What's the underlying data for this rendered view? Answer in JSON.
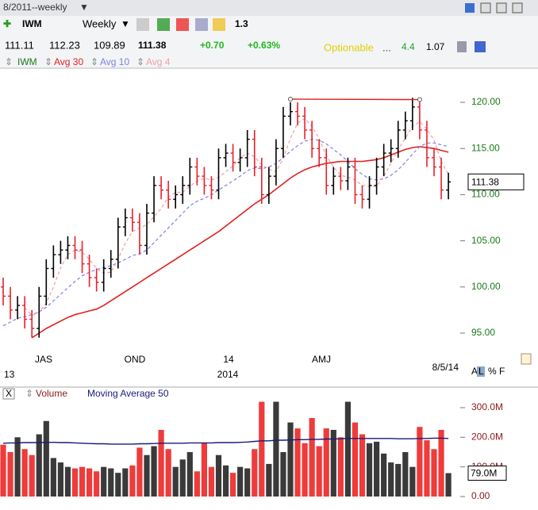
{
  "header": {
    "period": "8/2011--weekly",
    "symbol": "IWM",
    "interval": "Weekly",
    "setting": 1.3,
    "quote": {
      "open": 111.11,
      "high": 112.23,
      "low": 109.89,
      "last": 111.38,
      "change": "+0.70",
      "change_pct": "+0.63%",
      "optionable": "Optionable",
      "dots": "...",
      "iv": 4.4,
      "ratio": 1.07
    }
  },
  "chart_data": [
    {
      "type": "ohlc",
      "legend": [
        "IWM"
      ],
      "up_color": "#000000",
      "down_color": "#e8202a",
      "x_labels": [
        "JAS",
        "OND",
        "14",
        "AMJ"
      ],
      "year_labels": [
        "13",
        "2014"
      ],
      "date_label": "8/5/14",
      "ylim": [
        90.7,
        123.7
      ],
      "yticks": [
        {
          "value": 95,
          "label": "95.00"
        },
        {
          "value": 100,
          "label": "100.00"
        },
        {
          "value": 105,
          "label": "105.00"
        },
        {
          "value": 110,
          "label": "110.00"
        },
        {
          "value": 115,
          "label": "115.00"
        },
        {
          "value": 120,
          "label": "120.00"
        }
      ],
      "open": [
        100,
        99,
        97.5,
        98,
        96.5,
        95.5,
        99,
        102,
        103.5,
        104,
        104.5,
        104,
        102.5,
        101,
        100.5,
        102,
        103,
        106.5,
        107.5,
        107,
        104.5,
        108,
        111,
        110.5,
        109.5,
        110,
        111,
        113,
        112,
        111,
        110.5,
        114,
        114.5,
        113.5,
        114,
        116,
        113,
        110,
        112,
        115,
        118.5,
        119,
        118.5,
        117,
        115,
        114,
        111,
        112,
        111.5,
        113,
        110,
        109.5,
        111,
        113,
        114.5,
        115,
        117,
        118,
        119.5,
        117,
        114,
        113,
        110.5
      ],
      "high": [
        101,
        100,
        99,
        99,
        97.5,
        100,
        103,
        104.5,
        105,
        105.5,
        105.5,
        105,
        103.5,
        102,
        103,
        104,
        107.5,
        108.5,
        108.5,
        108,
        109,
        112,
        112,
        111.5,
        111,
        112,
        114,
        114,
        113,
        112,
        115,
        115.5,
        115.5,
        115,
        117,
        117,
        114,
        113,
        116,
        119.5,
        120,
        120,
        119.5,
        118,
        116,
        115,
        113,
        113,
        114,
        114,
        111,
        112,
        114,
        115.5,
        116,
        118,
        119,
        120.5,
        120.5,
        118,
        115,
        114,
        112.38
      ],
      "low": [
        98,
        96.5,
        96.5,
        95.5,
        94.5,
        94.5,
        98,
        101,
        102.5,
        103,
        103,
        101.5,
        100,
        99.5,
        99.5,
        101,
        102,
        105.5,
        106,
        103.5,
        103.5,
        107,
        109.5,
        108.5,
        108.5,
        109,
        110,
        111,
        110,
        109.5,
        109.5,
        113,
        112.5,
        112.5,
        113,
        112,
        109,
        109,
        111,
        114,
        117.5,
        117.5,
        116,
        114,
        113,
        110,
        110,
        110.5,
        110.5,
        109,
        108.5,
        108.5,
        110,
        112,
        113.5,
        114,
        116,
        117,
        116,
        113,
        112,
        109.5,
        109.5
      ],
      "close": [
        99,
        97.5,
        98,
        96.5,
        95.5,
        99,
        102,
        103.5,
        104,
        104.5,
        104,
        102.5,
        101,
        100.5,
        102,
        103,
        106.5,
        107.5,
        107,
        104.5,
        108,
        111,
        110.5,
        109.5,
        110,
        111,
        113,
        112,
        111,
        110.5,
        114,
        114.5,
        113.5,
        114,
        116,
        113,
        110,
        112,
        115,
        118.5,
        119,
        118.5,
        117,
        115,
        114,
        111,
        112,
        111.5,
        113,
        110,
        109.5,
        111,
        113,
        114.5,
        115,
        117,
        118,
        119.5,
        117,
        114,
        113,
        110.5,
        111.38
      ],
      "trendline": {
        "x": [
          40,
          58
        ],
        "y": [
          120.35,
          120.3
        ],
        "color": "#e02020"
      },
      "series": [
        {
          "name": "Avg 30",
          "color": "#e02020",
          "dash": false,
          "values": [
            null,
            null,
            null,
            null,
            94.5,
            95.0,
            95.5,
            95.9,
            96.3,
            96.7,
            97.0,
            97.2,
            97.4,
            97.6,
            98.0,
            98.5,
            99.0,
            99.5,
            100.0,
            100.5,
            101.0,
            101.5,
            102.0,
            102.5,
            103.0,
            103.5,
            104.0,
            104.5,
            105.0,
            105.5,
            106.0,
            106.6,
            107.2,
            107.8,
            108.4,
            109.0,
            109.5,
            110.0,
            110.6,
            111.2,
            111.8,
            112.3,
            112.7,
            113.0,
            113.2,
            113.4,
            113.5,
            113.6,
            113.6,
            113.6,
            113.6,
            113.7,
            113.8,
            114.0,
            114.3,
            114.6,
            114.9,
            115.1,
            115.2,
            115.1,
            115.0,
            114.8,
            114.6
          ]
        },
        {
          "name": "Avg 10",
          "color": "#8080e0",
          "dash": true,
          "values": [
            95.8,
            96.2,
            96.6,
            96.8,
            97.0,
            97.3,
            97.8,
            98.5,
            99.2,
            99.9,
            100.6,
            101.2,
            101.6,
            101.9,
            102.1,
            102.3,
            102.6,
            103.0,
            103.4,
            103.6,
            104.0,
            104.8,
            105.6,
            106.4,
            107.2,
            108.0,
            108.8,
            109.3,
            109.6,
            110.0,
            110.5,
            111.0,
            111.5,
            112.0,
            112.6,
            112.9,
            112.8,
            113.0,
            113.4,
            114.0,
            114.7,
            115.3,
            115.8,
            116.0,
            115.9,
            115.5,
            114.9,
            114.3,
            113.6,
            112.8,
            112.2,
            111.7,
            111.6,
            111.7,
            112.1,
            112.7,
            113.5,
            114.4,
            115.2,
            115.6,
            115.6,
            115.4,
            115.2
          ]
        },
        {
          "name": "Avg 4",
          "color": "#f0a0a0",
          "dash": true,
          "values": [
            null,
            null,
            null,
            97.75,
            96.9,
            97.25,
            98.25,
            100,
            102.1,
            103.5,
            104,
            103.75,
            103,
            102,
            101.5,
            101.6,
            103,
            104.75,
            106,
            106.4,
            106.75,
            107.6,
            108.5,
            109.75,
            110.25,
            110.25,
            110.9,
            111.5,
            111.75,
            111.6,
            111.9,
            112.5,
            113.1,
            114,
            114.5,
            114.1,
            113.25,
            112.75,
            112.5,
            113.9,
            116.1,
            117.75,
            118.25,
            117.4,
            116.1,
            114.25,
            113,
            112.1,
            111.9,
            111.6,
            111,
            110.9,
            110.9,
            112,
            113.4,
            114.9,
            116.1,
            117.4,
            117.9,
            117.1,
            115.9,
            113.6,
            112.2
          ]
        }
      ]
    },
    {
      "type": "volume",
      "legend": [
        "Volume"
      ],
      "ylim": [
        0,
        324
      ],
      "last_label": "79.0M",
      "yticks": [
        {
          "value": 0,
          "label": "0.00"
        },
        {
          "value": 100,
          "label": "100.0M"
        },
        {
          "value": 200,
          "label": "200.0M"
        },
        {
          "value": 300,
          "label": "300.0M"
        }
      ],
      "values": [
        175,
        150,
        200,
        160,
        140,
        210,
        255,
        130,
        115,
        100,
        95,
        100,
        95,
        85,
        100,
        95,
        80,
        95,
        105,
        165,
        140,
        170,
        225,
        160,
        100,
        125,
        150,
        85,
        180,
        100,
        140,
        105,
        80,
        100,
        95,
        160,
        320,
        110,
        320,
        150,
        250,
        230,
        180,
        265,
        170,
        230,
        225,
        200,
        320,
        250,
        210,
        180,
        185,
        145,
        115,
        110,
        150,
        100,
        235,
        190,
        160,
        225,
        79
      ],
      "series": [
        {
          "name": "Moving Average 50",
          "color": "#1a1a7a",
          "values": [
            180,
            181,
            181,
            182,
            182,
            182,
            183,
            183,
            182,
            182,
            181,
            180,
            179,
            178,
            178,
            177,
            177,
            177,
            177,
            178,
            178,
            179,
            180,
            180,
            180,
            180,
            181,
            181,
            181,
            181,
            182,
            182,
            182,
            183,
            184,
            186,
            188,
            188,
            190,
            190,
            191,
            192,
            192,
            193,
            193,
            194,
            194,
            195,
            196,
            196,
            196,
            196,
            196,
            196,
            196,
            195,
            195,
            195,
            196,
            196,
            197,
            197,
            196
          ]
        }
      ]
    }
  ]
}
